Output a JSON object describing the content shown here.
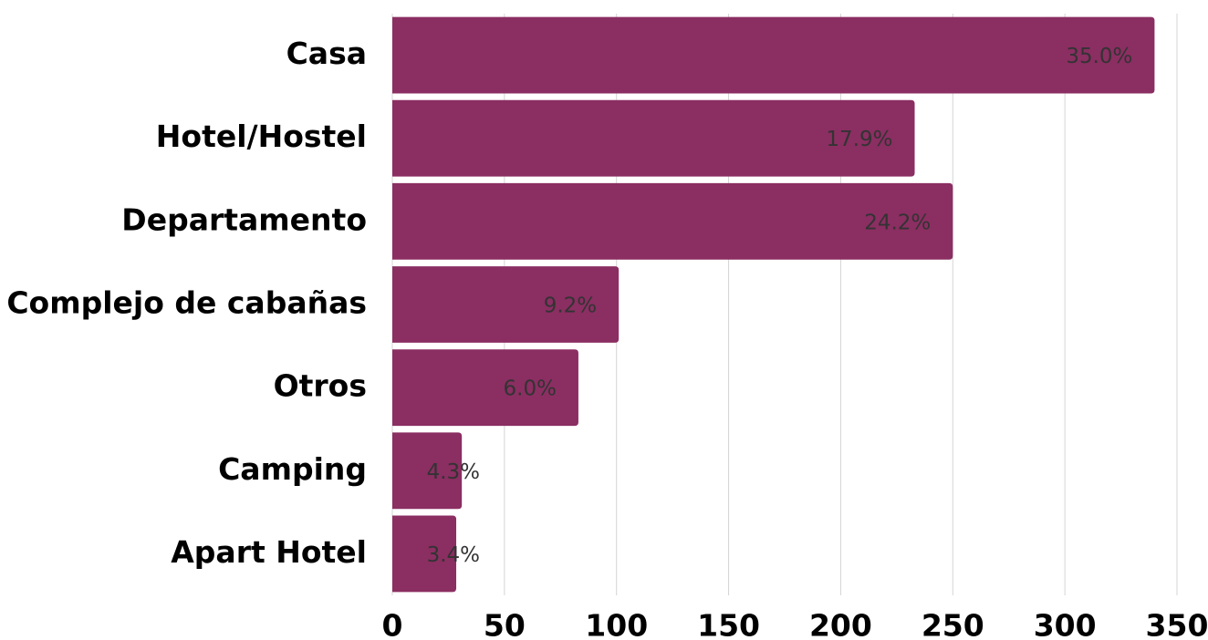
{
  "chart_data": {
    "type": "hbar",
    "categories": [
      "Casa",
      "Hotel/Hostel",
      "Departamento",
      "Complejo de cabañas",
      "Otros",
      "Camping",
      "Apart Hotel"
    ],
    "values": [
      340,
      233,
      250,
      101,
      83,
      31,
      28.5
    ],
    "value_labels": [
      "35.0%",
      "17.9%",
      "24.2%",
      "9.2%",
      "6.0%",
      "4.3%",
      "3.4%"
    ],
    "color": "#8b2e62",
    "xlim": [
      0,
      350
    ],
    "xticks": [
      0,
      50,
      100,
      150,
      200,
      250,
      300,
      350
    ],
    "grid": true
  }
}
